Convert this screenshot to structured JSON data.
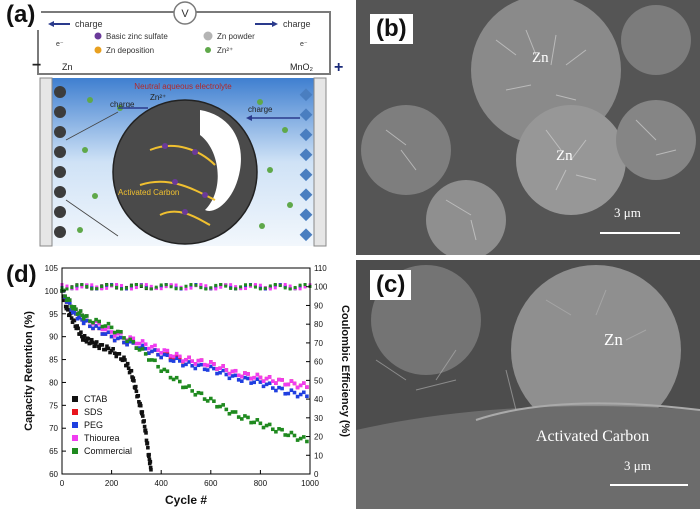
{
  "panel_a": {
    "label": "(a)",
    "voltmeter": "V",
    "charge_left": "charge",
    "charge_right": "charge",
    "electron": "e⁻",
    "anode": "Zn",
    "cathode": "MnO₂",
    "minus": "−",
    "plus": "+",
    "legend": [
      "Basic zinc sulfate",
      "Zn deposition",
      "Zn powder",
      "Zn²⁺"
    ],
    "electrolyte": "Neutral aqueous electrolyte",
    "ion_label": "Zn²⁺",
    "charge_mid_left": "charge",
    "charge_mid_right": "charge",
    "carbon_label": "Activated Carbon"
  },
  "panel_b": {
    "label": "(b)",
    "zn_top": "Zn",
    "zn_mid": "Zn",
    "scale": "3 μm"
  },
  "panel_c": {
    "label": "(c)",
    "zn": "Zn",
    "carbon": "Activated Carbon",
    "scale": "3 μm"
  },
  "panel_d": {
    "label": "(d)"
  },
  "colors": {
    "CTAB": "#111111",
    "SDS": "#e8141c",
    "PEG": "#1f3fe0",
    "Thiourea": "#f03cf0",
    "Commercial": "#1f8a1f"
  },
  "chart_data": {
    "type": "scatter",
    "xlabel": "Cycle #",
    "ylabel": "Capacity Retention (%)",
    "y2label": "Coulombic Efficiency (%)",
    "xlim": [
      0,
      1000
    ],
    "ylim": [
      60,
      105
    ],
    "y2lim": [
      0,
      110
    ],
    "xticks": [
      0,
      200,
      400,
      600,
      800,
      1000
    ],
    "yticks": [
      60,
      65,
      70,
      75,
      80,
      85,
      90,
      95,
      100,
      105
    ],
    "y2ticks": [
      0,
      10,
      20,
      30,
      40,
      50,
      60,
      70,
      80,
      90,
      100,
      110
    ],
    "legend_position": "bottom-left",
    "series": [
      {
        "name": "CTAB",
        "x": [
          0,
          20,
          50,
          80,
          110,
          150,
          200,
          250,
          280,
          300,
          320,
          335,
          350,
          360
        ],
        "y": [
          100,
          96,
          93,
          90,
          89,
          88,
          87,
          85,
          82,
          78,
          74,
          70,
          64,
          61
        ]
      },
      {
        "name": "SDS",
        "x": [
          0,
          50,
          100,
          200,
          300,
          400,
          500,
          600,
          700,
          800,
          900,
          1000
        ],
        "y": [
          100,
          95,
          93,
          90,
          88,
          86,
          85,
          84,
          82,
          81,
          80,
          79
        ]
      },
      {
        "name": "PEG",
        "x": [
          0,
          50,
          100,
          200,
          300,
          400,
          500,
          600,
          700,
          800,
          900,
          1000
        ],
        "y": [
          100,
          95,
          93,
          90,
          88,
          86,
          84,
          83,
          81,
          80,
          78,
          77
        ]
      },
      {
        "name": "Thiourea",
        "x": [
          0,
          50,
          100,
          200,
          300,
          400,
          500,
          600,
          700,
          800,
          900,
          1000
        ],
        "y": [
          100,
          96,
          94,
          91,
          89,
          87,
          85,
          84,
          82,
          81,
          80,
          79
        ]
      },
      {
        "name": "Commercial",
        "x": [
          0,
          50,
          100,
          200,
          300,
          400,
          500,
          600,
          700,
          800,
          900,
          1000
        ],
        "y": [
          100,
          96,
          94,
          92,
          88,
          83,
          79,
          76,
          73,
          71,
          69,
          67
        ]
      }
    ],
    "coulombic_efficiency": {
      "value": 100
    }
  }
}
